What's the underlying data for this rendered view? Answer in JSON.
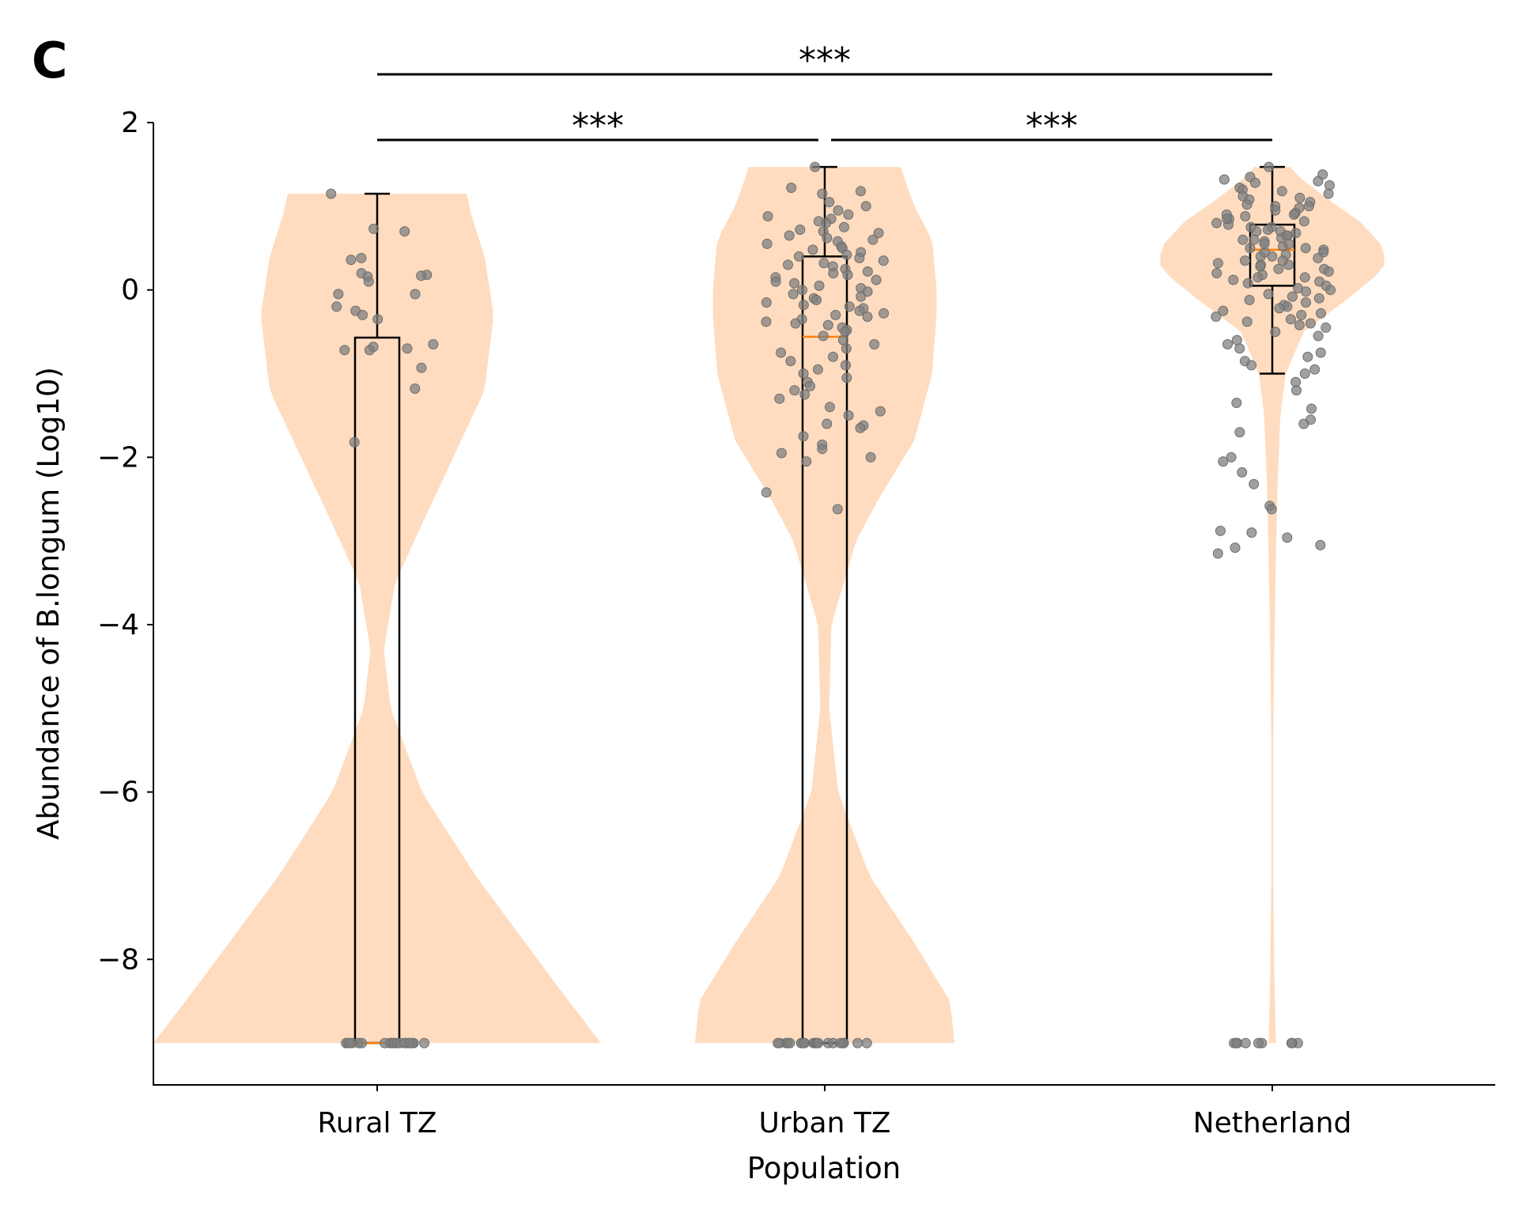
{
  "panel_label": "C",
  "chart_data": {
    "type": "violin-box-strip",
    "xlabel": "Population",
    "ylabel": "Abundance of B.longum (Log10)",
    "categories": [
      "Rural TZ",
      "Urban TZ",
      "Netherland"
    ],
    "ylim": [
      -9.5,
      2.0
    ],
    "yticks": [
      2,
      0,
      -2,
      -4,
      -6,
      -8
    ],
    "ytick_labels": [
      "2",
      "0",
      "−2",
      "−4",
      "−6",
      "−8"
    ],
    "violin_color": "#ffdcbf",
    "box_color": "#000000",
    "median_color": "#ff7f0e",
    "point_color": "#808080",
    "groups": [
      {
        "name": "Rural TZ",
        "box": {
          "whisker_low": -9.0,
          "q1": -9.0,
          "median": -9.0,
          "q3": -0.57,
          "whisker_high": 1.15
        },
        "violin": {
          "ymin": -9.0,
          "ymax": 1.15,
          "profile": [
            [
              -9.0,
              0.5
            ],
            [
              -8.3,
              0.4
            ],
            [
              -7.0,
              0.22
            ],
            [
              -6.0,
              0.1
            ],
            [
              -5.0,
              0.03
            ],
            [
              -4.3,
              0.015
            ],
            [
              -3.5,
              0.04
            ],
            [
              -2.8,
              0.1
            ],
            [
              -2.0,
              0.17
            ],
            [
              -1.2,
              0.24
            ],
            [
              -0.3,
              0.26
            ],
            [
              0.4,
              0.24
            ],
            [
              0.9,
              0.21
            ],
            [
              1.15,
              0.2
            ]
          ]
        },
        "points": [
          -9.0,
          -9.0,
          -9.0,
          -9.0,
          -9.0,
          -9.0,
          -9.0,
          -9.0,
          -9.0,
          -9.0,
          -9.0,
          -9.0,
          -9.0,
          -9.0,
          -9.0,
          -9.0,
          -9.0,
          -9.0,
          -9.0,
          -9.0,
          1.15,
          0.73,
          0.7,
          0.38,
          0.36,
          0.2,
          0.18,
          0.17,
          0.16,
          0.1,
          -0.05,
          -0.05,
          -0.2,
          -0.25,
          -0.3,
          -0.35,
          -0.65,
          -0.68,
          -0.7,
          -0.72,
          -0.72,
          -0.93,
          -1.18,
          -1.82
        ]
      },
      {
        "name": "Urban TZ",
        "box": {
          "whisker_low": -9.0,
          "q1": -9.0,
          "median": -0.56,
          "q3": 0.4,
          "whisker_high": 1.47
        },
        "violin": {
          "ymin": -9.0,
          "ymax": 1.47,
          "profile": [
            [
              -9.0,
              0.29
            ],
            [
              -8.5,
              0.28
            ],
            [
              -7.8,
              0.2
            ],
            [
              -7.0,
              0.1
            ],
            [
              -6.0,
              0.03
            ],
            [
              -5.0,
              0.01
            ],
            [
              -4.0,
              0.015
            ],
            [
              -3.0,
              0.07
            ],
            [
              -2.5,
              0.12
            ],
            [
              -1.8,
              0.2
            ],
            [
              -1.0,
              0.24
            ],
            [
              -0.3,
              0.25
            ],
            [
              0.0,
              0.25
            ],
            [
              0.6,
              0.24
            ],
            [
              1.0,
              0.2
            ],
            [
              1.3,
              0.18
            ],
            [
              1.47,
              0.17
            ]
          ]
        },
        "points": [
          -9.0,
          -9.0,
          -9.0,
          -9.0,
          -9.0,
          -9.0,
          -9.0,
          -9.0,
          -9.0,
          -9.0,
          -9.0,
          -9.0,
          -9.0,
          -9.0,
          -9.0,
          -9.0,
          -9.0,
          -9.0,
          -9.0,
          -9.0,
          -9.0,
          -9.0,
          1.47,
          1.22,
          1.18,
          1.15,
          1.05,
          1.0,
          0.95,
          0.9,
          0.88,
          0.85,
          0.82,
          0.8,
          0.75,
          0.72,
          0.7,
          0.68,
          0.65,
          0.62,
          0.6,
          0.58,
          0.55,
          0.52,
          0.5,
          0.48,
          0.45,
          0.42,
          0.4,
          0.38,
          0.35,
          0.32,
          0.3,
          0.28,
          0.25,
          0.22,
          0.2,
          0.18,
          0.15,
          0.12,
          0.1,
          0.08,
          0.05,
          0.02,
          0.0,
          -0.02,
          -0.05,
          -0.08,
          -0.1,
          -0.12,
          -0.15,
          -0.18,
          -0.2,
          -0.22,
          -0.25,
          -0.28,
          -0.3,
          -0.32,
          -0.35,
          -0.38,
          -0.4,
          -0.42,
          -0.45,
          -0.48,
          -0.5,
          -0.55,
          -0.6,
          -0.65,
          -0.7,
          -0.75,
          -0.8,
          -0.85,
          -0.9,
          -0.95,
          -1.0,
          -1.05,
          -1.1,
          -1.15,
          -1.2,
          -1.25,
          -1.3,
          -1.4,
          -1.45,
          -1.5,
          -1.6,
          -1.62,
          -1.65,
          -1.75,
          -1.85,
          -1.9,
          -1.95,
          -2.0,
          -2.05,
          -2.42,
          -2.62
        ]
      },
      {
        "name": "Netherland",
        "box": {
          "whisker_low": -1.0,
          "q1": 0.05,
          "median": 0.48,
          "q3": 0.78,
          "whisker_high": 1.47
        },
        "violin": {
          "ymin": -9.0,
          "ymax": 1.47,
          "profile": [
            [
              -9.0,
              0.008
            ],
            [
              -8.3,
              0.005
            ],
            [
              -7.0,
              0.002
            ],
            [
              -5.5,
              0.002
            ],
            [
              -4.5,
              0.004
            ],
            [
              -3.2,
              0.008
            ],
            [
              -2.3,
              0.012
            ],
            [
              -1.5,
              0.018
            ],
            [
              -1.0,
              0.03
            ],
            [
              -0.5,
              0.07
            ],
            [
              -0.1,
              0.17
            ],
            [
              0.25,
              0.25
            ],
            [
              0.5,
              0.25
            ],
            [
              0.8,
              0.2
            ],
            [
              1.1,
              0.12
            ],
            [
              1.35,
              0.06
            ],
            [
              1.47,
              0.04
            ]
          ]
        },
        "points": [
          -9.0,
          -9.0,
          -9.0,
          -9.0,
          -9.0,
          -9.0,
          -9.0,
          -9.0,
          -9.0,
          -9.0,
          1.47,
          1.38,
          1.35,
          1.32,
          1.3,
          1.28,
          1.25,
          1.22,
          1.2,
          1.18,
          1.15,
          1.12,
          1.1,
          1.08,
          1.05,
          1.02,
          1.0,
          0.98,
          0.95,
          0.92,
          0.9,
          0.88,
          0.85,
          0.82,
          0.8,
          0.78,
          0.75,
          0.72,
          0.7,
          0.68,
          0.65,
          0.62,
          0.6,
          0.58,
          0.55,
          0.52,
          0.5,
          0.48,
          0.45,
          0.42,
          0.4,
          0.38,
          0.35,
          0.32,
          0.3,
          0.28,
          0.25,
          0.22,
          0.2,
          0.18,
          0.15,
          0.12,
          0.1,
          0.08,
          0.05,
          0.02,
          0.0,
          -0.02,
          -0.05,
          -0.08,
          -0.1,
          -0.12,
          -0.15,
          -0.18,
          -0.2,
          -0.22,
          -0.25,
          -0.28,
          -0.3,
          -0.32,
          -0.35,
          -0.38,
          -0.4,
          -0.42,
          -0.45,
          -0.5,
          -0.55,
          -0.6,
          -0.65,
          -0.7,
          -0.75,
          -0.8,
          -0.85,
          -0.9,
          -0.95,
          -1.0,
          -1.1,
          -1.2,
          -1.35,
          -1.42,
          -1.55,
          -1.6,
          -1.7,
          -2.0,
          -2.05,
          -2.18,
          -2.32,
          -2.58,
          -2.62,
          -2.88,
          -2.9,
          -2.96,
          -3.05,
          -3.08,
          -3.15,
          0.6,
          0.5,
          0.4,
          0.3,
          0.7,
          0.9,
          1.0,
          0.45,
          0.55,
          0.65,
          0.75,
          0.85,
          0.35,
          0.25,
          0.15
        ]
      }
    ],
    "significance": [
      {
        "from": "Rural TZ",
        "to": "Netherland",
        "label": "***",
        "level": "top"
      },
      {
        "from": "Rural TZ",
        "to": "Urban TZ",
        "label": "***",
        "level": "lower"
      },
      {
        "from": "Urban TZ",
        "to": "Netherland",
        "label": "***",
        "level": "lower"
      }
    ]
  }
}
